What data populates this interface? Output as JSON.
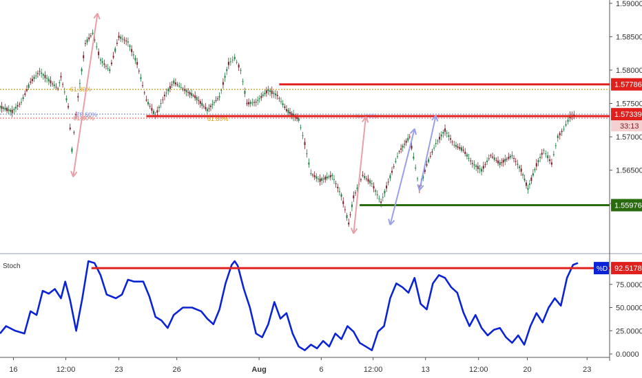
{
  "chart_data": [
    {
      "type": "candlestick",
      "title": "",
      "ylim": [
        1.5525,
        1.5905
      ],
      "price_axis_ticks": [
        "1.59000",
        "1.58500",
        "1.58000",
        "1.57500",
        "1.57000",
        "1.56500",
        "1.56000"
      ],
      "price_labels": [
        {
          "value": 1.57786,
          "text": "1.57786",
          "color": "#e0201d"
        },
        {
          "value": 1.57339,
          "text": "1.57339",
          "color": "#e0201d"
        },
        {
          "value": 1.55976,
          "text": "1.55976",
          "color": "#2a6b10"
        }
      ],
      "countdown_label": "33:13",
      "horizontal_levels": [
        {
          "name": "resistance",
          "value": 1.57786,
          "start": 0.458,
          "color": "#e0201d"
        },
        {
          "name": "pivot",
          "value": 1.5731,
          "start": 0.24,
          "color": "#e0201d"
        },
        {
          "name": "support",
          "value": 1.55976,
          "start": 0.59,
          "color": "#2a6b10"
        }
      ],
      "fib_levels": [
        {
          "label": "61.80%",
          "value": 1.5771,
          "color": "#d4a020"
        },
        {
          "label": "78.60%",
          "value": 1.5734,
          "color": "#7a8ad8"
        },
        {
          "label": "61.80%",
          "value": 1.5728,
          "color": "#e87070"
        }
      ],
      "fib_texts": [
        "61.80%",
        "78.60%",
        "61.80%",
        "61.80%",
        "61.80%"
      ],
      "x_ticks": [
        "16",
        "12:00",
        "23",
        "26",
        "Aug",
        "6",
        "12:00",
        "13",
        "12:00",
        "20",
        "23"
      ],
      "close_path": [
        [
          0.0,
          1.5745
        ],
        [
          0.02,
          1.5738
        ],
        [
          0.035,
          1.5752
        ],
        [
          0.05,
          1.5782
        ],
        [
          0.065,
          1.5798
        ],
        [
          0.08,
          1.5785
        ],
        [
          0.095,
          1.5772
        ],
        [
          0.1,
          1.579
        ],
        [
          0.112,
          1.5745
        ],
        [
          0.118,
          1.568
        ],
        [
          0.128,
          1.576
        ],
        [
          0.14,
          1.584
        ],
        [
          0.152,
          1.5855
        ],
        [
          0.165,
          1.5815
        ],
        [
          0.18,
          1.58
        ],
        [
          0.195,
          1.585
        ],
        [
          0.21,
          1.5842
        ],
        [
          0.225,
          1.581
        ],
        [
          0.24,
          1.5755
        ],
        [
          0.255,
          1.5732
        ],
        [
          0.27,
          1.5762
        ],
        [
          0.285,
          1.5782
        ],
        [
          0.3,
          1.5772
        ],
        [
          0.32,
          1.576
        ],
        [
          0.34,
          1.574
        ],
        [
          0.36,
          1.576
        ],
        [
          0.375,
          1.581
        ],
        [
          0.385,
          1.5818
        ],
        [
          0.395,
          1.58
        ],
        [
          0.405,
          1.575
        ],
        [
          0.42,
          1.5752
        ],
        [
          0.44,
          1.577
        ],
        [
          0.455,
          1.5762
        ],
        [
          0.47,
          1.574
        ],
        [
          0.49,
          1.5726
        ],
        [
          0.5,
          1.569
        ],
        [
          0.51,
          1.5645
        ],
        [
          0.525,
          1.5635
        ],
        [
          0.545,
          1.5642
        ],
        [
          0.56,
          1.5612
        ],
        [
          0.572,
          1.557
        ],
        [
          0.58,
          1.561
        ],
        [
          0.595,
          1.5642
        ],
        [
          0.61,
          1.563
        ],
        [
          0.625,
          1.5602
        ],
        [
          0.64,
          1.564
        ],
        [
          0.655,
          1.5678
        ],
        [
          0.672,
          1.57
        ],
        [
          0.688,
          1.5622
        ],
        [
          0.7,
          1.5658
        ],
        [
          0.715,
          1.569
        ],
        [
          0.73,
          1.571
        ],
        [
          0.745,
          1.5688
        ],
        [
          0.76,
          1.568
        ],
        [
          0.775,
          1.566
        ],
        [
          0.79,
          1.565
        ],
        [
          0.805,
          1.5672
        ],
        [
          0.82,
          1.566
        ],
        [
          0.84,
          1.5672
        ],
        [
          0.855,
          1.565
        ],
        [
          0.866,
          1.5622
        ],
        [
          0.88,
          1.5658
        ],
        [
          0.892,
          1.568
        ],
        [
          0.905,
          1.566
        ],
        [
          0.915,
          1.57
        ],
        [
          0.925,
          1.5712
        ],
        [
          0.935,
          1.573
        ],
        [
          0.945,
          1.5734
        ]
      ],
      "arrows": [
        {
          "color": "#e8a0a8",
          "from": [
            0.12,
            1.564
          ],
          "to": [
            0.16,
            1.5885
          ]
        },
        {
          "color": "#e8a0a8",
          "from": [
            0.58,
            1.5555
          ],
          "to": [
            0.6,
            1.573
          ]
        },
        {
          "color": "#9aa0e8",
          "from": [
            0.64,
            1.5568
          ],
          "to": [
            0.68,
            1.5712
          ]
        },
        {
          "color": "#9aa0e8",
          "from": [
            0.688,
            1.562
          ],
          "to": [
            0.715,
            1.5732
          ]
        }
      ]
    },
    {
      "type": "line",
      "indicator_name": "Stoch",
      "ylim": [
        0,
        100
      ],
      "y_ticks": [
        "75.0000",
        "50.0000",
        "25.0000",
        "0.0000"
      ],
      "series": [
        {
          "values": [
            [
              0.0,
              22
            ],
            [
              0.01,
              30
            ],
            [
              0.025,
              25
            ],
            [
              0.04,
              22
            ],
            [
              0.05,
              46
            ],
            [
              0.06,
              42
            ],
            [
              0.07,
              68
            ],
            [
              0.08,
              65
            ],
            [
              0.09,
              70
            ],
            [
              0.1,
              60
            ],
            [
              0.107,
              78
            ],
            [
              0.115,
              58
            ],
            [
              0.125,
              25
            ],
            [
              0.135,
              60
            ],
            [
              0.145,
              100
            ],
            [
              0.155,
              98
            ],
            [
              0.165,
              85
            ],
            [
              0.175,
              64
            ],
            [
              0.19,
              60
            ],
            [
              0.2,
              64
            ],
            [
              0.21,
              80
            ],
            [
              0.22,
              78
            ],
            [
              0.235,
              78
            ],
            [
              0.245,
              62
            ],
            [
              0.255,
              40
            ],
            [
              0.265,
              36
            ],
            [
              0.275,
              28
            ],
            [
              0.285,
              42
            ],
            [
              0.3,
              50
            ],
            [
              0.315,
              50
            ],
            [
              0.33,
              46
            ],
            [
              0.34,
              38
            ],
            [
              0.35,
              32
            ],
            [
              0.36,
              48
            ],
            [
              0.37,
              76
            ],
            [
              0.38,
              96
            ],
            [
              0.385,
              100
            ],
            [
              0.39,
              95
            ],
            [
              0.4,
              70
            ],
            [
              0.41,
              50
            ],
            [
              0.42,
              22
            ],
            [
              0.43,
              18
            ],
            [
              0.44,
              32
            ],
            [
              0.45,
              56
            ],
            [
              0.46,
              38
            ],
            [
              0.47,
              44
            ],
            [
              0.48,
              22
            ],
            [
              0.49,
              8
            ],
            [
              0.5,
              4
            ],
            [
              0.51,
              10
            ],
            [
              0.52,
              6
            ],
            [
              0.53,
              14
            ],
            [
              0.54,
              8
            ],
            [
              0.55,
              22
            ],
            [
              0.56,
              16
            ],
            [
              0.57,
              30
            ],
            [
              0.58,
              24
            ],
            [
              0.59,
              12
            ],
            [
              0.6,
              8
            ],
            [
              0.61,
              4
            ],
            [
              0.62,
              24
            ],
            [
              0.63,
              30
            ],
            [
              0.64,
              60
            ],
            [
              0.65,
              76
            ],
            [
              0.66,
              72
            ],
            [
              0.67,
              66
            ],
            [
              0.68,
              82
            ],
            [
              0.69,
              54
            ],
            [
              0.7,
              48
            ],
            [
              0.71,
              76
            ],
            [
              0.72,
              85
            ],
            [
              0.73,
              82
            ],
            [
              0.74,
              72
            ],
            [
              0.75,
              66
            ],
            [
              0.76,
              45
            ],
            [
              0.77,
              30
            ],
            [
              0.78,
              42
            ],
            [
              0.79,
              28
            ],
            [
              0.8,
              20
            ],
            [
              0.81,
              26
            ],
            [
              0.82,
              28
            ],
            [
              0.83,
              18
            ],
            [
              0.84,
              12
            ],
            [
              0.85,
              20
            ],
            [
              0.86,
              10
            ],
            [
              0.87,
              30
            ],
            [
              0.88,
              44
            ],
            [
              0.89,
              34
            ],
            [
              0.9,
              50
            ],
            [
              0.91,
              60
            ],
            [
              0.92,
              52
            ],
            [
              0.93,
              82
            ],
            [
              0.94,
              96
            ],
            [
              0.948,
              98
            ]
          ]
        }
      ],
      "level_line": 92.5178,
      "value_label": "92.5178",
      "legend_tag": "%D",
      "line_color": "#0b23d6",
      "level_color": "#e0201d"
    }
  ]
}
